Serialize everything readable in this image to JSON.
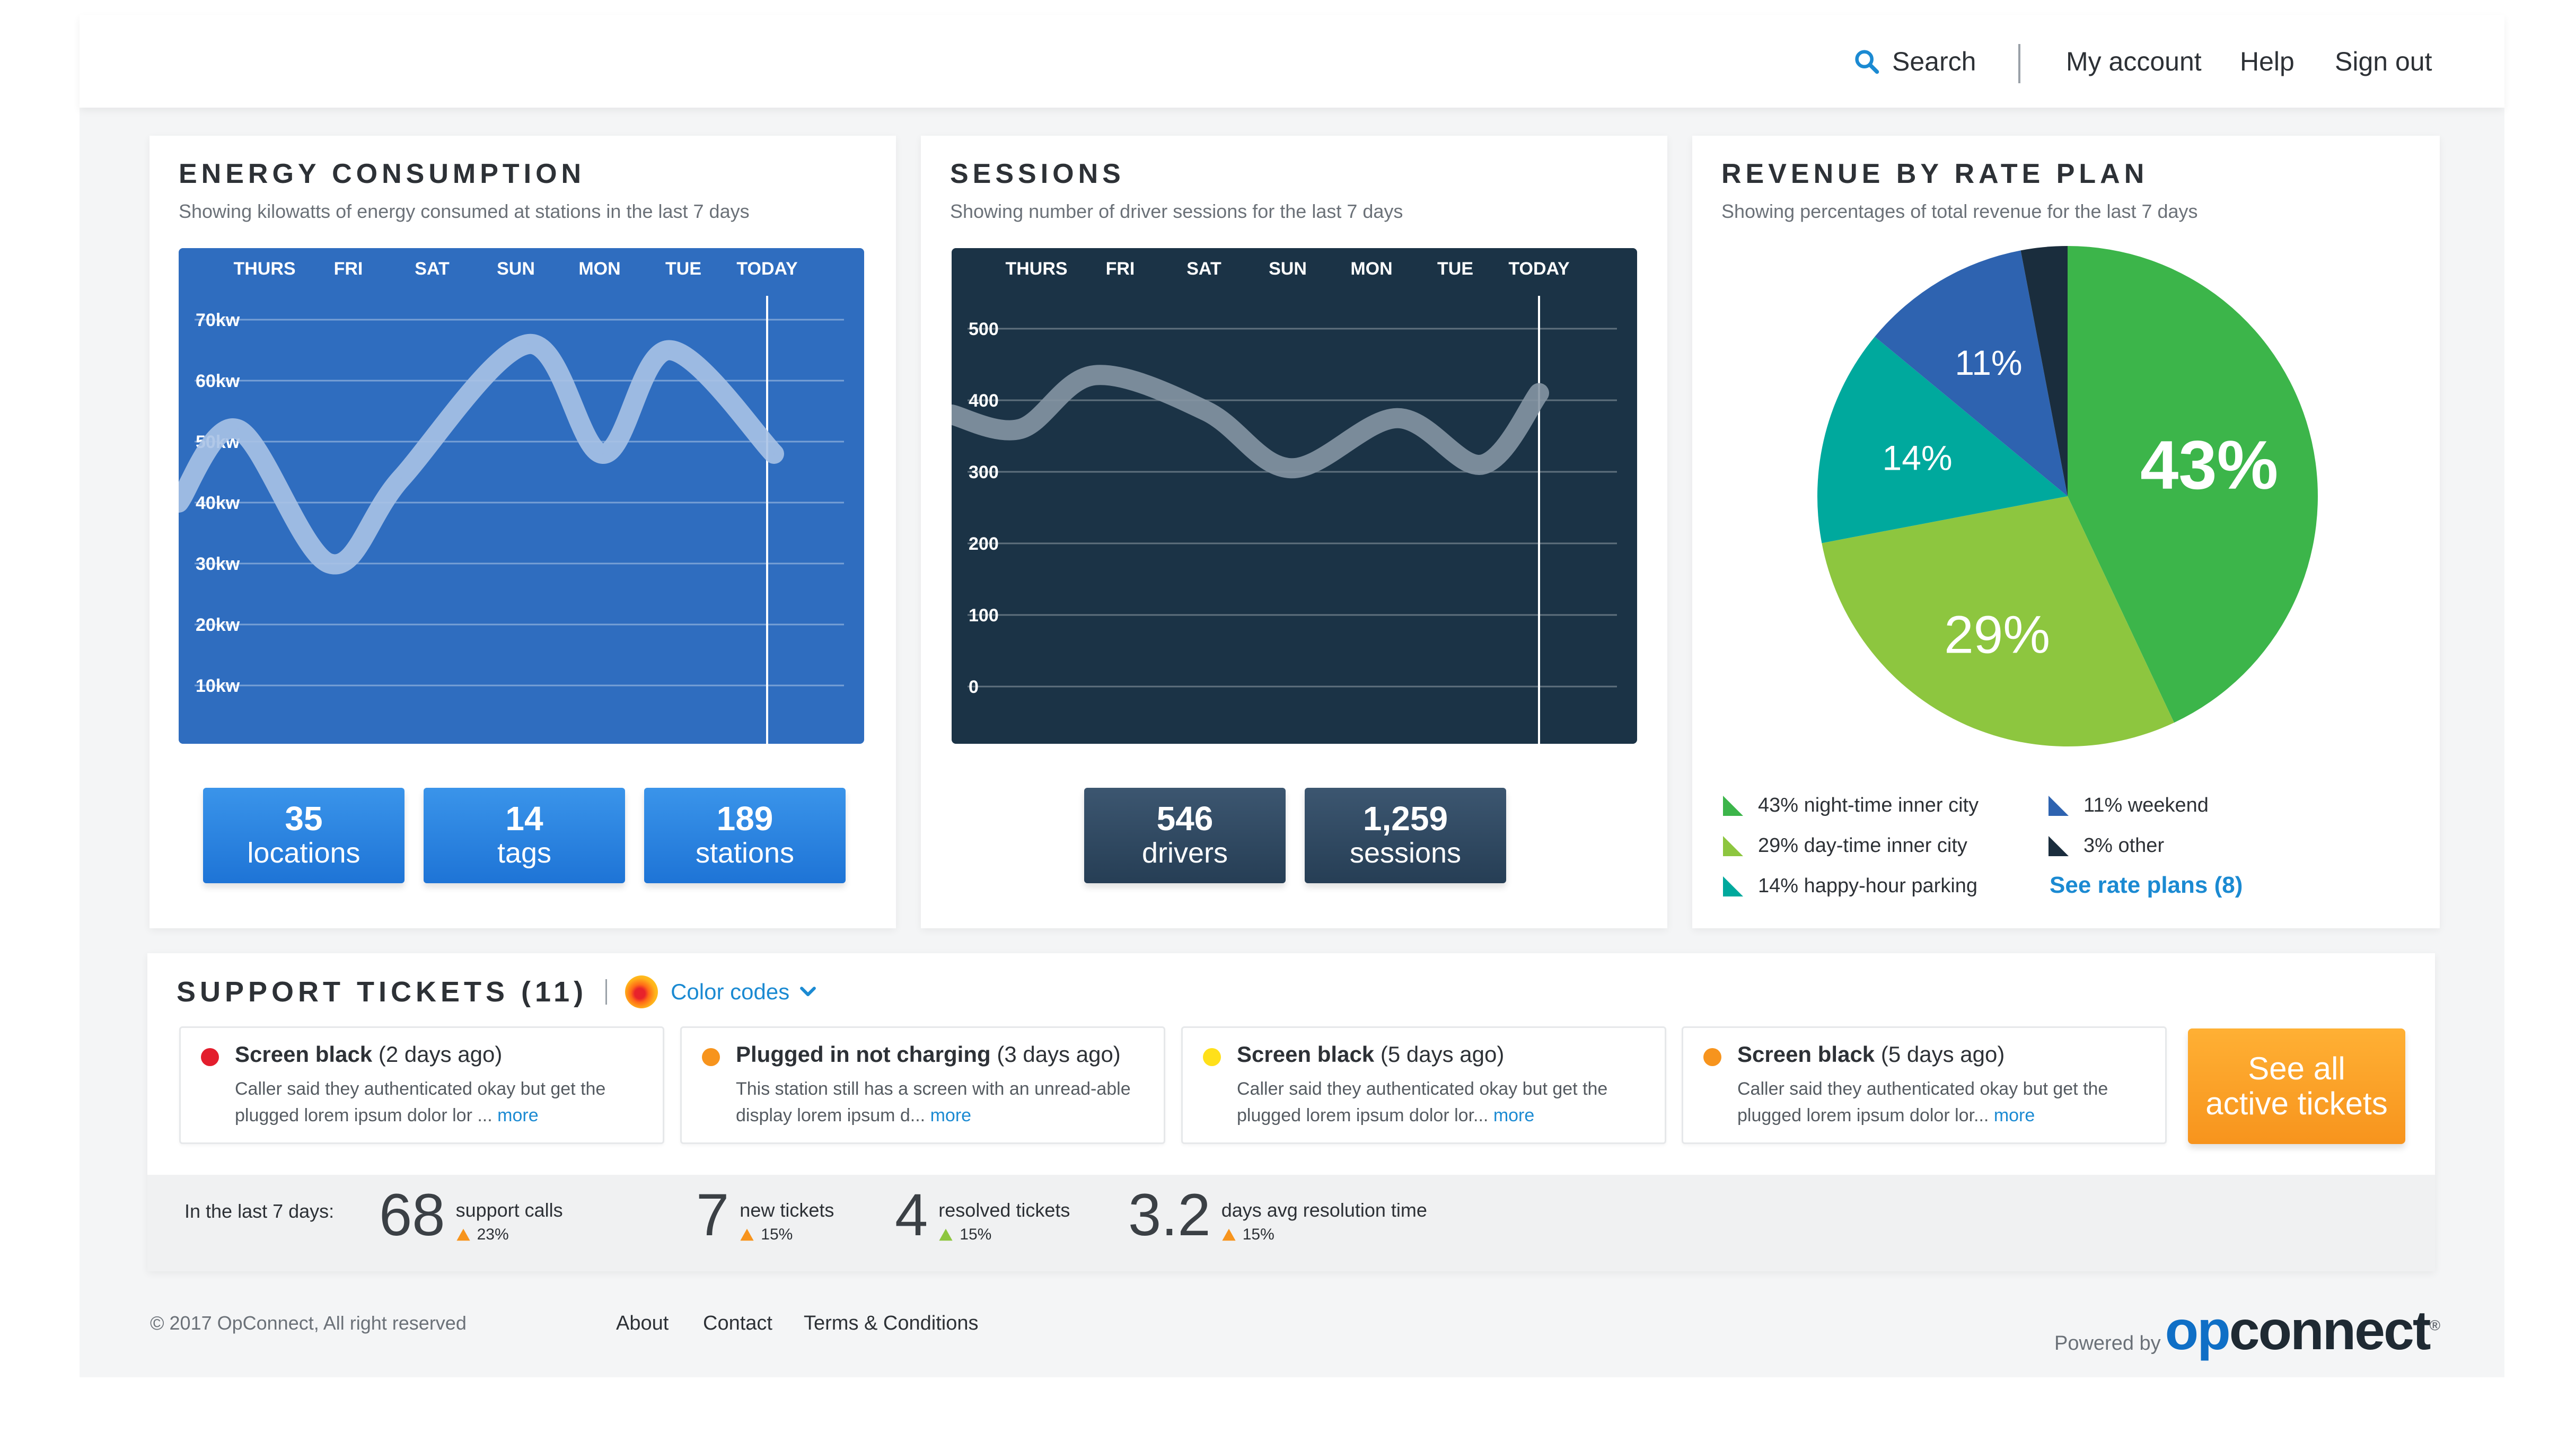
{
  "nav": {
    "search": "Search",
    "my_account": "My account",
    "help": "Help",
    "sign_out": "Sign out"
  },
  "energy": {
    "title": "ENERGY CONSUMPTION",
    "subtitle": "Showing kilowatts of energy consumed at stations in the last 7 days",
    "stats": [
      {
        "value": "35",
        "label": "locations"
      },
      {
        "value": "14",
        "label": "tags"
      },
      {
        "value": "189",
        "label": "stations"
      }
    ]
  },
  "sessions": {
    "title": "SESSIONS",
    "subtitle": "Showing number of driver sessions for the last 7 days",
    "stats": [
      {
        "value": "546",
        "label": "drivers"
      },
      {
        "value": "1,259",
        "label": "sessions"
      }
    ]
  },
  "revenue": {
    "title": "REVENUE BY RATE PLAN",
    "subtitle": "Showing percentages of total revenue for the last 7 days",
    "legend": [
      {
        "label": "43% night-time inner city",
        "color": "#3cb54a"
      },
      {
        "label": "29% day-time inner city",
        "color": "#8dc63f"
      },
      {
        "label": "14% happy-hour parking",
        "color": "#00a99d"
      },
      {
        "label": "11% weekend",
        "color": "#2e63b0"
      },
      {
        "label": "3% other",
        "color": "#1a2d3d"
      }
    ],
    "link": "See rate plans (8)"
  },
  "chart_data": [
    {
      "type": "line",
      "x": [
        "THURS",
        "FRI",
        "SAT",
        "SUN",
        "MON",
        "TUE",
        "TODAY"
      ],
      "y_ticks": [
        "70kw",
        "60kw",
        "50kw",
        "40kw",
        "30kw",
        "20kw",
        "10kw"
      ],
      "ylim": [
        10,
        70
      ],
      "series": [
        {
          "values": [
            52,
            30,
            44,
            66,
            48,
            65,
            48
          ]
        }
      ],
      "grid": true,
      "colors": {
        "background": "#2f6dbf",
        "line": "#a9c2e6"
      }
    },
    {
      "type": "line",
      "x": [
        "THURS",
        "FRI",
        "SAT",
        "SUN",
        "MON",
        "TUE",
        "TODAY"
      ],
      "y_ticks": [
        "500",
        "400",
        "300",
        "200",
        "100",
        "0"
      ],
      "ylim": [
        0,
        500
      ],
      "series": [
        {
          "values": [
            360,
            435,
            385,
            305,
            375,
            310,
            410
          ]
        }
      ],
      "grid": true,
      "colors": {
        "background": "#1b3346",
        "line": "#8595a3"
      }
    },
    {
      "type": "pie",
      "labels": [
        "43%",
        "29%",
        "14%",
        "11%",
        ""
      ],
      "values": [
        43,
        29,
        14,
        11,
        3
      ],
      "colors": [
        "#3cb54a",
        "#8dc63f",
        "#00a99d",
        "#2e63b0",
        "#1a2d3d"
      ]
    }
  ],
  "tickets": {
    "title": "SUPPORT TICKETS (11)",
    "color_codes": "Color codes",
    "items": [
      {
        "title": "Screen black",
        "age": "(2 days ago)",
        "body": "Caller said they authenticated okay but get the plugged lorem ipsum dolor lor ...",
        "more": "more",
        "color": "#e31e2d"
      },
      {
        "title": "Plugged in not charging",
        "age": "(3 days ago)",
        "body": "This station still has a screen with an unread-able display lorem ipsum d...",
        "more": "more",
        "color": "#f7941d"
      },
      {
        "title": "Screen black",
        "age": "(5 days ago)",
        "body": "Caller said they authenticated okay but get the plugged lorem ipsum dolor lor...",
        "more": "more",
        "color": "#ffe01a"
      },
      {
        "title": "Screen black",
        "age": "(5 days ago)",
        "body": "Caller said they authenticated okay but get the plugged lorem ipsum dolor lor...",
        "more": "more",
        "color": "#f7941d"
      }
    ],
    "see_all_line1": "See all",
    "see_all_line2": "active tickets",
    "period_label": "In the last 7 days:",
    "kpis": [
      {
        "value": "68",
        "name": "support calls",
        "change": "23%"
      },
      {
        "value": "7",
        "name": "new tickets",
        "change": "15%"
      },
      {
        "value": "4",
        "name": "resolved tickets",
        "change": "15%"
      },
      {
        "value": "3.2",
        "name": "days avg resolution time",
        "change": "15%"
      }
    ]
  },
  "footer": {
    "copyright": "© 2017 OpConnect, All right reserved",
    "links": [
      "About",
      "Contact",
      "Terms & Conditions"
    ],
    "powered_by": "Powered by",
    "brand_op": "op",
    "brand_rest": "connect",
    "brand_mark": "®"
  }
}
